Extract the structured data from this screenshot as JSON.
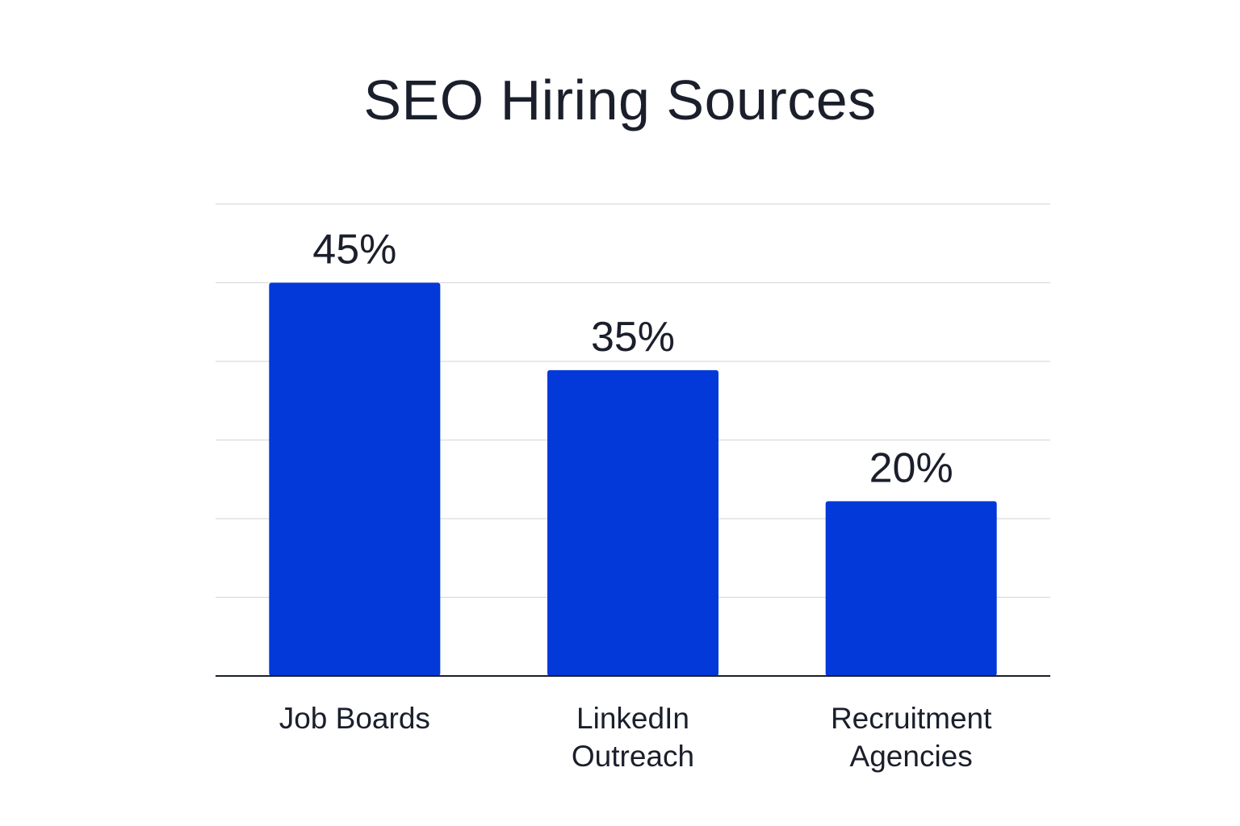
{
  "chart_data": {
    "type": "bar",
    "title": "SEO Hiring Sources",
    "categories": [
      [
        "Job Boards"
      ],
      [
        "LinkedIn",
        "Outreach"
      ],
      [
        "Recruitment",
        "Agencies"
      ]
    ],
    "values": [
      45,
      35,
      20
    ],
    "value_labels": [
      "45%",
      "35%",
      "20%"
    ],
    "ylim": [
      0,
      54
    ],
    "grid": true,
    "bar_color": "#0339d9"
  }
}
